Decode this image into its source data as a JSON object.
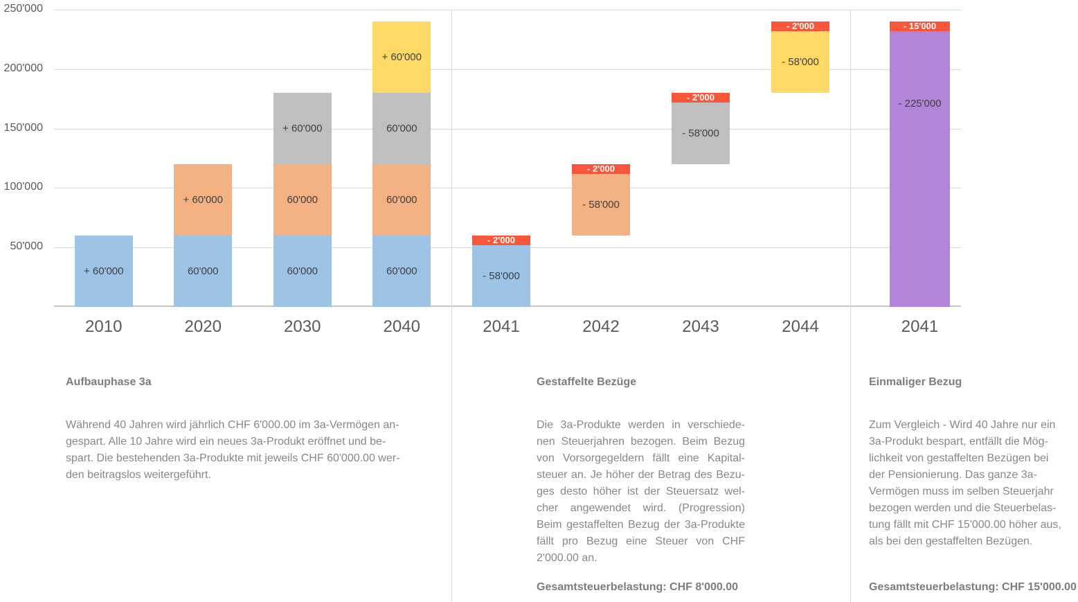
{
  "chart_data": {
    "type": "bar",
    "ylim": [
      0,
      250000
    ],
    "grid": "on",
    "y_ticks": [
      {
        "value": 250000,
        "label": "250'000"
      },
      {
        "value": 200000,
        "label": "200'000"
      },
      {
        "value": 150000,
        "label": "150'000"
      },
      {
        "value": 100000,
        "label": "100'000"
      },
      {
        "value": 50000,
        "label": "50'000"
      }
    ],
    "gridline_values": [
      250000,
      200000,
      150000,
      100000,
      50000,
      0
    ],
    "colors": {
      "blue": "#9DC3E6",
      "orange": "#F4B183",
      "gray": "#BFBFBF",
      "yellow": "#FFD966",
      "red": "#F9573B",
      "purple": "#B184D9",
      "bar_label": "#3F3F3F",
      "axis_text": "#595959",
      "gridline": "#D9D9D9"
    },
    "sections": [
      {
        "id": "aufbau",
        "bars": [
          {
            "year": "2010",
            "type": "stacked",
            "segments": [
              {
                "value": 60000,
                "label": "+ 60'000",
                "color": "blue"
              }
            ]
          },
          {
            "year": "2020",
            "type": "stacked",
            "segments": [
              {
                "value": 60000,
                "label": "60'000",
                "color": "blue"
              },
              {
                "value": 60000,
                "label": "+ 60'000",
                "color": "orange"
              }
            ]
          },
          {
            "year": "2030",
            "type": "stacked",
            "segments": [
              {
                "value": 60000,
                "label": "60'000",
                "color": "blue"
              },
              {
                "value": 60000,
                "label": "60'000",
                "color": "orange"
              },
              {
                "value": 60000,
                "label": "+ 60'000",
                "color": "gray"
              }
            ]
          },
          {
            "year": "2040",
            "type": "stacked",
            "segments": [
              {
                "value": 60000,
                "label": "60'000",
                "color": "blue"
              },
              {
                "value": 60000,
                "label": "60'000",
                "color": "orange"
              },
              {
                "value": 60000,
                "label": "60'000",
                "color": "gray"
              },
              {
                "value": 60000,
                "label": "+ 60'000",
                "color": "yellow"
              }
            ]
          }
        ]
      },
      {
        "id": "gestaffelt",
        "bars": [
          {
            "year": "2041",
            "type": "float",
            "start": 0,
            "end": 60000,
            "value": -58000,
            "label": "- 58'000",
            "cap_value": -2000,
            "cap_label": "- 2'000",
            "color": "blue"
          },
          {
            "year": "2042",
            "type": "float",
            "start": 60000,
            "end": 120000,
            "value": -58000,
            "label": "- 58'000",
            "cap_value": -2000,
            "cap_label": "- 2'000",
            "color": "orange"
          },
          {
            "year": "2043",
            "type": "float",
            "start": 120000,
            "end": 180000,
            "value": -58000,
            "label": "- 58'000",
            "cap_value": -2000,
            "cap_label": "- 2'000",
            "color": "gray"
          },
          {
            "year": "2044",
            "type": "float",
            "start": 180000,
            "end": 240000,
            "value": -58000,
            "label": "- 58'000",
            "cap_value": -2000,
            "cap_label": "- 2'000",
            "color": "yellow"
          }
        ]
      },
      {
        "id": "einmalig",
        "bars": [
          {
            "year": "2041",
            "type": "float",
            "start": 0,
            "end": 240000,
            "value": -225000,
            "label": "- 225'000",
            "cap_value": -15000,
            "cap_label": "- 15'000",
            "color": "purple",
            "label_high": true
          }
        ]
      }
    ]
  },
  "text": [
    {
      "heading": "Aufbauphase 3a",
      "lines": [
        "Während 40 Jahren wird jährlich CHF 6'000.00 im 3a-Vermögen an-",
        "gespart. Alle 10 Jahre wird ein neues 3a-Produkt eröffnet und be-",
        "spart. Die bestehenden 3a-Produkte mit jeweils CHF 60'000.00 wer-",
        "den beitragslos weitergeführt."
      ]
    },
    {
      "heading": "Gestaffelte Bezüge",
      "lines": [
        "Die 3a-Produkte werden in verschiede-",
        "nen Steuerjahren bezogen. Beim Bezug",
        "von Vorsorgegeldern fällt eine Kapital-",
        "steuer an. Je höher der Betrag des Bezu-",
        "ges desto höher ist der Steuersatz wel-",
        "cher angewendet wird. (Progression)",
        "Beim gestaffelten Bezug der 3a-Produkte",
        "fällt pro Bezug eine Steuer von CHF",
        "2'000.00 an."
      ],
      "footer": "Gesamtsteuerbelastung: CHF 8'000.00"
    },
    {
      "heading": "Einmaliger Bezug",
      "lines": [
        "Zum Vergleich - Wird 40 Jahre nur ein",
        "3a-Produkt bespart, entfällt die Mög-",
        "lichkeit von gestaffelten Bezügen bei",
        "der Pensionierung. Das ganze 3a-",
        "Vermögen muss im selben Steuerjahr",
        "bezogen werden und die Steuerbelas-",
        "tung fällt mit CHF 15'000.00 höher aus,",
        "als bei den gestaffelten Bezügen."
      ],
      "footer": "Gesamtsteuerbelastung: CHF 15'000.00"
    }
  ]
}
